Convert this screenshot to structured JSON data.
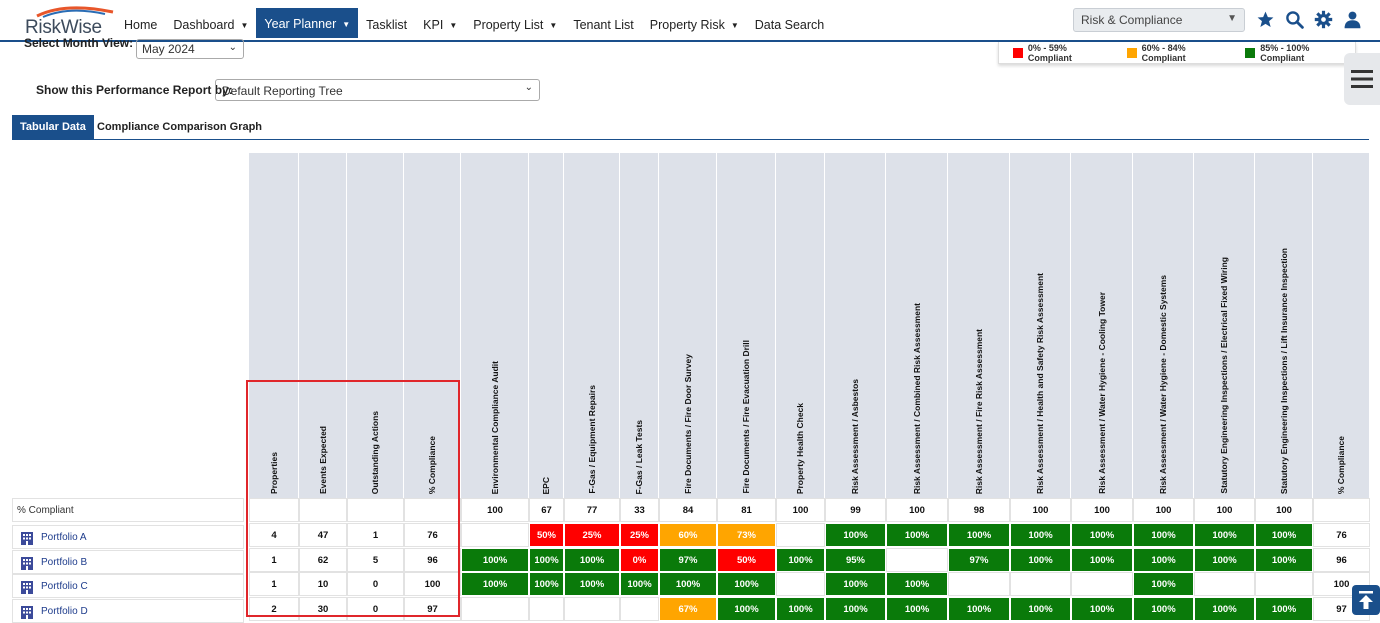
{
  "brand": {
    "name": "RiskWise"
  },
  "nav": {
    "items": [
      {
        "label": "Home",
        "caret": false,
        "active": false
      },
      {
        "label": "Dashboard",
        "caret": true,
        "active": false
      },
      {
        "label": "Year Planner",
        "caret": true,
        "active": true
      },
      {
        "label": "Tasklist",
        "caret": false,
        "active": false
      },
      {
        "label": "KPI",
        "caret": true,
        "active": false
      },
      {
        "label": "Property List",
        "caret": true,
        "active": false
      },
      {
        "label": "Tenant List",
        "caret": false,
        "active": false
      },
      {
        "label": "Property Risk",
        "caret": true,
        "active": false
      },
      {
        "label": "Data Search",
        "caret": false,
        "active": false
      }
    ],
    "module_select": "Risk & Compliance",
    "icons": [
      "star-icon",
      "search-icon",
      "gear-icon",
      "user-icon"
    ]
  },
  "legend": {
    "items": [
      {
        "label": "0% - 59% Compliant",
        "color": "#ff0000"
      },
      {
        "label": "60% - 84% Compliant",
        "color": "#ffa500"
      },
      {
        "label": "85% - 100% Compliant",
        "color": "#0a7a0a"
      }
    ]
  },
  "filters": {
    "month_label": "Select Month View:",
    "month_value": "May 2024",
    "tree_label": "Show this Performance Report by:",
    "tree_value": "Default Reporting Tree"
  },
  "tabs": [
    "Tabular Data",
    "Compliance Comparison Graph"
  ],
  "table": {
    "columns": [
      "Properties",
      "Events Expected",
      "Outstanding Actions",
      "% Compliance",
      "Environmental Compliance Audit",
      "EPC",
      "F-Gas / Equipment Repairs",
      "F-Gas / Leak Tests",
      "Fire Documents / Fire Door Survey",
      "Fire Documents / Fire Evacuation Drill",
      "Property Health Check",
      "Risk Assessment / Asbestos",
      "Risk Assessment / Combined Risk Assessment",
      "Risk Assessment / Fire Risk Assessment",
      "Risk Assessment / Health and Safety Risk Assessment",
      "Risk Assessment / Water Hygiene - Cooling Tower",
      "Risk Assessment / Water Hygiene - Domestic Systems",
      "Statutory Engineering Inspections / Electrical Fixed Wiring",
      "Statutory Engineering Inspections / Lift Insurance Inspection",
      "% Compliance"
    ],
    "compliant_label": "% Compliant",
    "compliant_row": [
      "",
      "",
      "",
      "",
      "100",
      "67",
      "77",
      "33",
      "84",
      "81",
      "100",
      "99",
      "100",
      "98",
      "100",
      "100",
      "100",
      "100",
      "100",
      ""
    ],
    "rows": [
      {
        "label": "Portfolio A",
        "cells": [
          "4",
          "47",
          "1",
          "76",
          "",
          "50%",
          "25%",
          "25%",
          "60%",
          "73%",
          "",
          "100%",
          "100%",
          "100%",
          "100%",
          "100%",
          "100%",
          "100%",
          "100%",
          "76"
        ],
        "colors": [
          "",
          "",
          "",
          "",
          "",
          "r",
          "r",
          "r",
          "o",
          "o",
          "",
          "g",
          "g",
          "g",
          "g",
          "g",
          "g",
          "g",
          "g",
          ""
        ]
      },
      {
        "label": "Portfolio B",
        "cells": [
          "1",
          "62",
          "5",
          "96",
          "100%",
          "100%",
          "100%",
          "0%",
          "97%",
          "50%",
          "100%",
          "95%",
          "",
          "97%",
          "100%",
          "100%",
          "100%",
          "100%",
          "100%",
          "96"
        ],
        "colors": [
          "",
          "",
          "",
          "",
          "g",
          "g",
          "g",
          "r",
          "g",
          "r",
          "g",
          "g",
          "",
          "g",
          "g",
          "g",
          "g",
          "g",
          "g",
          ""
        ]
      },
      {
        "label": "Portfolio C",
        "cells": [
          "1",
          "10",
          "0",
          "100",
          "100%",
          "100%",
          "100%",
          "100%",
          "100%",
          "100%",
          "",
          "100%",
          "100%",
          "",
          "",
          "",
          "100%",
          "",
          "",
          "100"
        ],
        "colors": [
          "",
          "",
          "",
          "",
          "g",
          "g",
          "g",
          "g",
          "g",
          "g",
          "",
          "g",
          "g",
          "",
          "",
          "",
          "g",
          "",
          "",
          ""
        ]
      },
      {
        "label": "Portfolio D",
        "cells": [
          "2",
          "30",
          "0",
          "97",
          "",
          "",
          "",
          "",
          "67%",
          "100%",
          "100%",
          "100%",
          "100%",
          "100%",
          "100%",
          "100%",
          "100%",
          "100%",
          "100%",
          "97"
        ],
        "colors": [
          "",
          "",
          "",
          "",
          "",
          "",
          "",
          "",
          "o",
          "g",
          "g",
          "g",
          "g",
          "g",
          "g",
          "g",
          "g",
          "g",
          "g",
          ""
        ]
      }
    ]
  }
}
